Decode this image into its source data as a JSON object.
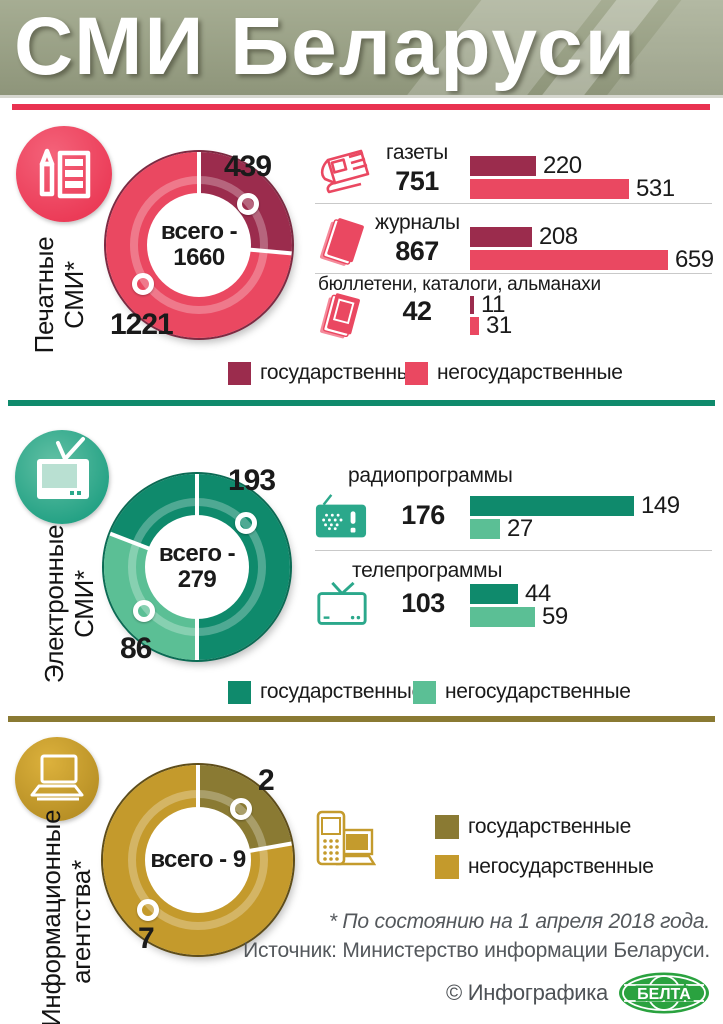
{
  "header": {
    "title": "СМИ Беларуси"
  },
  "legend": {
    "gov": "государственные",
    "nongov": "негосударственные"
  },
  "colors": {
    "print_gov": "#9b2c4d",
    "print_nongov": "#ea4861",
    "elec_gov": "#0f8a6c",
    "elec_nongov": "#5bbf95",
    "agency_gov": "#8a7a33",
    "agency_nongov": "#c49a2c",
    "header_bg": "#9aa186",
    "top_stripe": "#e93250",
    "belta_green": "#2aa23f"
  },
  "chart_data": [
    {
      "type": "donut",
      "title": "Печатные СМИ*",
      "icon": "pencil-and-paper-icon",
      "center_label": "всего -",
      "center_value": "1660",
      "total": 1660,
      "series": [
        {
          "name": "государственные",
          "value": 439,
          "color": "#9b2c4d"
        },
        {
          "name": "негосударственные",
          "value": 1221,
          "color": "#ea4861"
        }
      ],
      "breakdown": {
        "type": "bar",
        "legend_position": "bottom",
        "groups": [
          {
            "label": "газеты",
            "total": 751,
            "icon": "newspaper-icon",
            "values": [
              220,
              531
            ]
          },
          {
            "label": "журналы",
            "total": 867,
            "icon": "magazine-icon",
            "values": [
              208,
              659
            ]
          },
          {
            "label": "бюллетени, каталоги, альманахи",
            "total": 42,
            "icon": "booklet-icon",
            "values": [
              11,
              31
            ]
          }
        ]
      }
    },
    {
      "type": "donut",
      "title": "Электронные СМИ*",
      "icon": "tv-icon",
      "center_label": "всего -",
      "center_value": "279",
      "total": 279,
      "series": [
        {
          "name": "государственные",
          "value": 193,
          "color": "#0f8a6c"
        },
        {
          "name": "негосударственные",
          "value": 86,
          "color": "#5bbf95"
        }
      ],
      "breakdown": {
        "type": "bar",
        "legend_position": "bottom",
        "groups": [
          {
            "label": "радиопрограммы",
            "total": 176,
            "icon": "radio-icon",
            "values": [
              149,
              27
            ]
          },
          {
            "label": "телепрограммы",
            "total": 103,
            "icon": "tv-small-icon",
            "values": [
              44,
              59
            ]
          }
        ]
      }
    },
    {
      "type": "donut",
      "title": "Информационные агентства*",
      "icon": "laptop-icon",
      "center_label": "всего - 9",
      "center_value": "",
      "total": 9,
      "series": [
        {
          "name": "государственные",
          "value": 2,
          "color": "#8a7a33"
        },
        {
          "name": "негосударственные",
          "value": 7,
          "color": "#c49a2c"
        }
      ]
    }
  ],
  "footer": {
    "footnote_asterisk": "* По состоянию на 1 апреля 2018 года.",
    "footnote_source": "Источник: Министерство информации Беларуси.",
    "credit": "© Инфографика",
    "logo_text": "БЕЛТА"
  }
}
